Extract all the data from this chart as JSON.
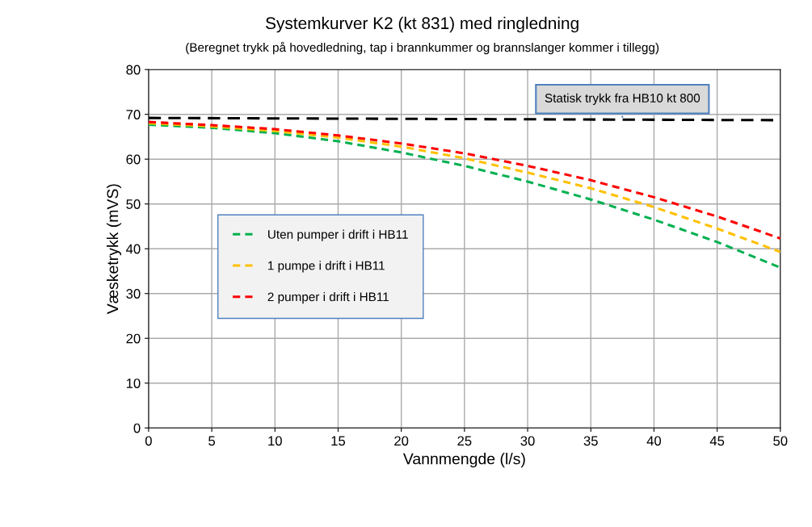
{
  "chart_data": {
    "type": "line",
    "title": "Systemkurver K2 (kt 831) med ringledning",
    "subtitle": "(Beregnet trykk på hovedledning, tap i brannkummer og brannslanger kommer i tillegg)",
    "xlabel": "Vannmengde (l/s)",
    "ylabel": "Væsketrykk (mVS)",
    "x": [
      0,
      5,
      10,
      15,
      20,
      25,
      30,
      35,
      40,
      45,
      50
    ],
    "series": [
      {
        "name": "Uten pumper i drift i HB11",
        "color": "#00b050",
        "values": [
          67.7,
          67.0,
          65.8,
          64.0,
          61.5,
          58.5,
          55.0,
          51.0,
          46.5,
          41.5,
          35.8
        ]
      },
      {
        "name": "1 pumpe i drift i HB11",
        "color": "#ffc000",
        "values": [
          68.0,
          67.3,
          66.3,
          64.8,
          62.8,
          60.2,
          57.0,
          53.5,
          49.3,
          44.5,
          39.3
        ]
      },
      {
        "name": "2 pumper i drift i HB11",
        "color": "#ff0000",
        "values": [
          68.3,
          67.6,
          66.7,
          65.3,
          63.5,
          61.3,
          58.5,
          55.3,
          51.5,
          47.2,
          42.3
        ]
      },
      {
        "color": "#000000",
        "line_style": "dashed",
        "x": [
          0,
          50
        ],
        "values": [
          69.2,
          68.7
        ]
      }
    ],
    "annotations": [
      {
        "text": "Statisk trykk fra HB10 kt 800",
        "x": 37.5,
        "y": 68.9
      }
    ],
    "xlim": [
      0,
      50
    ],
    "ylim": [
      0,
      80
    ],
    "xticks": [
      0,
      5,
      10,
      15,
      20,
      25,
      30,
      35,
      40,
      45,
      50
    ],
    "yticks": [
      0,
      10,
      20,
      30,
      40,
      50,
      60,
      70,
      80
    ],
    "grid": true,
    "legend": "center left",
    "marker": "none",
    "line_style": "dashed"
  }
}
